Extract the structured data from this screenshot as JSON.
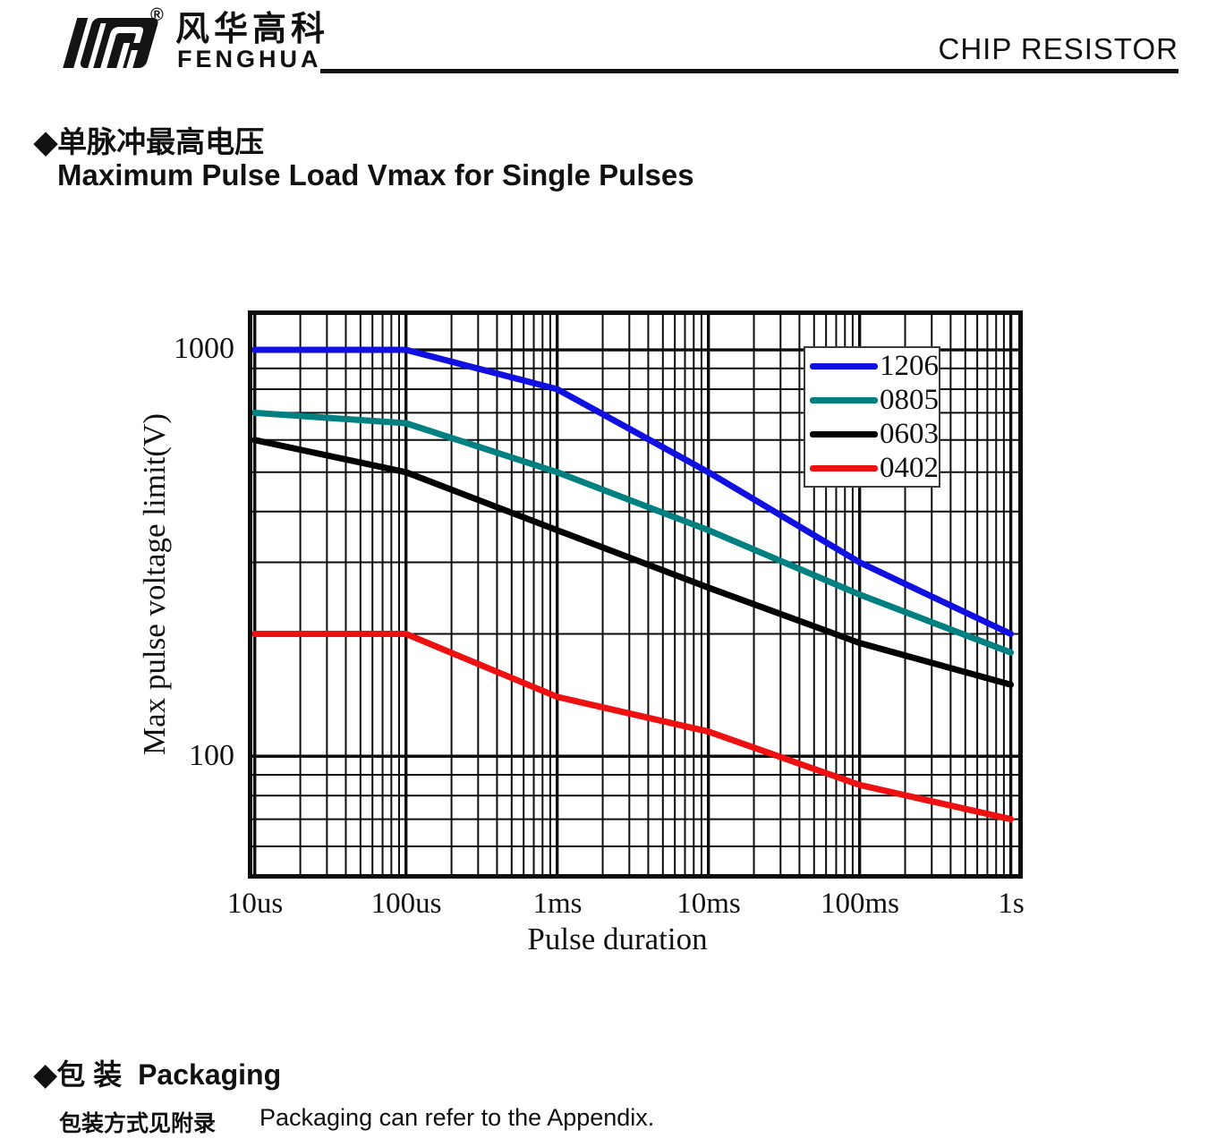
{
  "header": {
    "logo_cn": "风华高科",
    "logo_en": "FENGHUA",
    "registered": "®",
    "doc_title": "CHIP RESISTOR"
  },
  "section1": {
    "bullet": "◆",
    "title_cn": "单脉冲最高电压",
    "title_en": "Maximum Pulse Load Vmax for Single Pulses"
  },
  "chart_data": {
    "type": "line",
    "x_scale": "log",
    "y_scale": "log",
    "grid": "full log grid, black minor and major lines",
    "xlabel": "Pulse duration",
    "ylabel": "Max pulse voltage limit(V)",
    "x_tick_labels": [
      "10us",
      "100us",
      "1ms",
      "10ms",
      "100ms",
      "1s"
    ],
    "y_tick_labels": [
      "1000",
      "100"
    ],
    "y_ticks": [
      1000,
      100
    ],
    "x_units_s": [
      1e-05,
      0.0001,
      0.001,
      0.01,
      0.1,
      1
    ],
    "xlim_s": [
      9e-06,
      1.2
    ],
    "ylim": [
      50,
      1250
    ],
    "legend_position": "top-right-inside",
    "series": [
      {
        "name": "1206",
        "color": "#1010e0",
        "values": [
          1000,
          1000,
          800,
          500,
          300,
          200
        ]
      },
      {
        "name": "0805",
        "color": "#008080",
        "values": [
          700,
          660,
          500,
          360,
          250,
          180
        ]
      },
      {
        "name": "0603",
        "color": "#000000",
        "values": [
          600,
          500,
          360,
          260,
          190,
          150
        ]
      },
      {
        "name": "0402",
        "color": "#ee1111",
        "values": [
          200,
          200,
          140,
          115,
          85,
          70
        ]
      }
    ]
  },
  "section2": {
    "bullet": "◆",
    "title_cn": "包 装",
    "title_en": "Packaging",
    "note_cn": "包装方式见附录",
    "note_en": "Packaging can refer to the Appendix."
  }
}
